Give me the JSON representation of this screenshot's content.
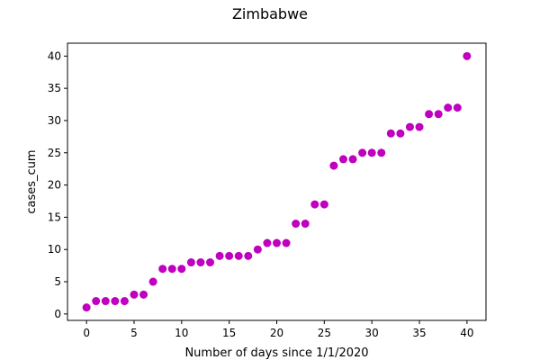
{
  "chart_data": {
    "type": "scatter",
    "title": "Zimbabwe",
    "xlabel": "Number of days since 1/1/2020",
    "ylabel": "cases_cum",
    "xlim": [
      -2,
      42
    ],
    "ylim": [
      -1,
      42
    ],
    "xticks": [
      0,
      5,
      10,
      15,
      20,
      25,
      30,
      35,
      40
    ],
    "yticks": [
      0,
      5,
      10,
      15,
      20,
      25,
      30,
      35,
      40
    ],
    "grid": false,
    "marker_color": "#bf00bf",
    "series": [
      {
        "x": [
          0,
          1,
          2,
          3,
          4,
          5,
          6,
          7,
          8,
          9,
          10,
          11,
          12,
          13,
          14,
          15,
          16,
          17,
          18,
          19,
          20,
          21,
          22,
          23,
          24,
          25,
          26,
          27,
          28,
          29,
          30,
          31,
          32,
          33,
          34,
          35,
          36,
          37,
          38,
          39,
          40
        ],
        "y": [
          1,
          2,
          2,
          2,
          2,
          3,
          3,
          5,
          7,
          7,
          7,
          8,
          8,
          8,
          9,
          9,
          9,
          9,
          10,
          11,
          11,
          11,
          14,
          14,
          17,
          17,
          23,
          24,
          24,
          25,
          25,
          25,
          28,
          28,
          29,
          29,
          31,
          31,
          32,
          32,
          40
        ]
      }
    ]
  }
}
